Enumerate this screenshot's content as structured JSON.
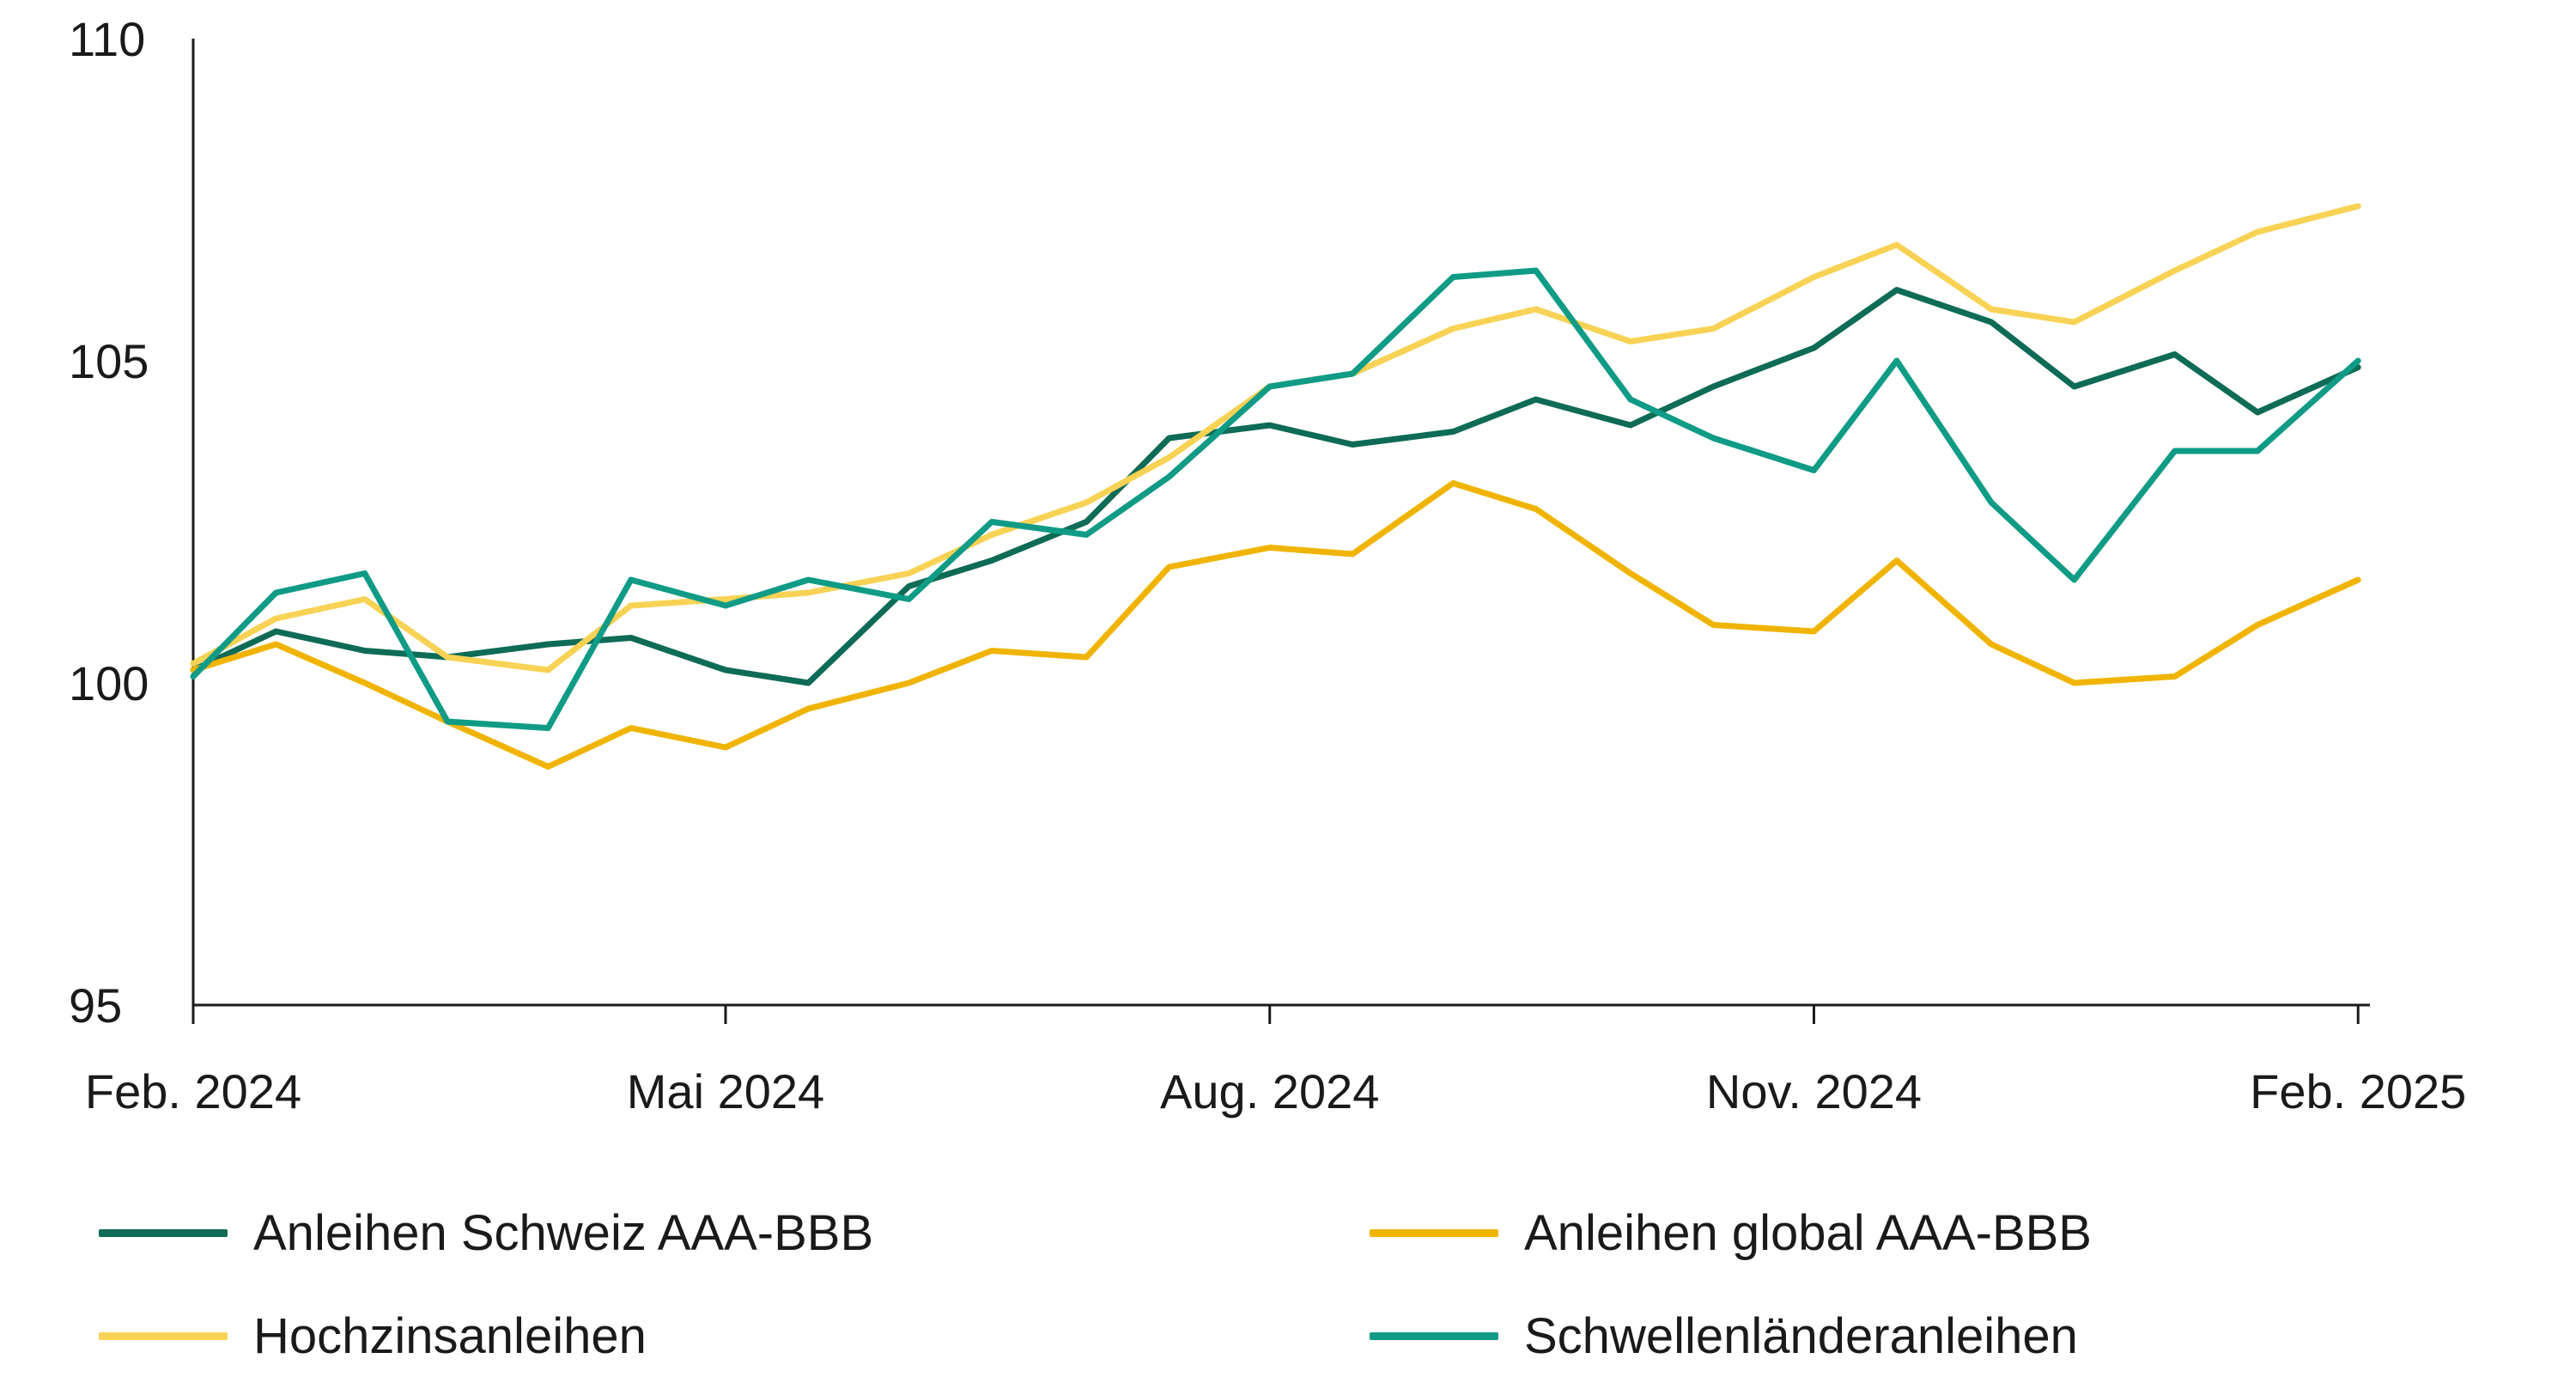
{
  "chart_data": {
    "type": "line",
    "title": "",
    "xlabel": "",
    "ylabel": "",
    "ylim": [
      95,
      110
    ],
    "yticks": [
      95,
      100,
      105,
      110
    ],
    "xlim": [
      "2024-02-01",
      "2025-02-03"
    ],
    "xticks": [
      {
        "date": "2024-02-01",
        "label": "Feb. 2024"
      },
      {
        "date": "2024-05-01",
        "label": "Mai 2024"
      },
      {
        "date": "2024-08-01",
        "label": "Aug. 2024"
      },
      {
        "date": "2024-11-01",
        "label": "Nov. 2024"
      },
      {
        "date": "2025-02-01",
        "label": "Feb. 2025"
      }
    ],
    "grid": false,
    "legend_position": "bottom",
    "series": [
      {
        "name": "Anleihen Schweiz AAA-BBB",
        "color": "#0e6b55",
        "x": [
          "2024-02-01",
          "2024-02-15",
          "2024-03-01",
          "2024-03-15",
          "2024-04-01",
          "2024-04-15",
          "2024-05-01",
          "2024-05-15",
          "2024-06-01",
          "2024-06-15",
          "2024-07-01",
          "2024-07-15",
          "2024-08-01",
          "2024-08-15",
          "2024-09-01",
          "2024-09-15",
          "2024-10-01",
          "2024-10-15",
          "2024-11-01",
          "2024-11-15",
          "2024-12-01",
          "2024-12-15",
          "2025-01-01",
          "2025-01-15",
          "2025-02-01"
        ],
        "values": [
          100.2,
          100.8,
          100.5,
          100.4,
          100.6,
          100.7,
          100.2,
          100.0,
          101.5,
          101.9,
          102.5,
          103.8,
          104.0,
          103.7,
          103.9,
          104.4,
          104.0,
          104.6,
          105.2,
          106.1,
          105.6,
          104.6,
          105.1,
          104.2,
          104.9
        ]
      },
      {
        "name": "Anleihen global AAA-BBB",
        "color": "#f0b400",
        "x": [
          "2024-02-01",
          "2024-02-15",
          "2024-03-01",
          "2024-03-15",
          "2024-04-01",
          "2024-04-15",
          "2024-05-01",
          "2024-05-15",
          "2024-06-01",
          "2024-06-15",
          "2024-07-01",
          "2024-07-15",
          "2024-08-01",
          "2024-08-15",
          "2024-09-01",
          "2024-09-15",
          "2024-10-01",
          "2024-10-15",
          "2024-11-01",
          "2024-11-15",
          "2024-12-01",
          "2024-12-15",
          "2025-01-01",
          "2025-01-15",
          "2025-02-01"
        ],
        "values": [
          100.2,
          100.6,
          100.0,
          99.4,
          98.7,
          99.3,
          99.0,
          99.6,
          100.0,
          100.5,
          100.4,
          101.8,
          102.1,
          102.0,
          103.1,
          102.7,
          101.7,
          100.9,
          100.8,
          101.9,
          100.6,
          100.0,
          100.1,
          100.9,
          101.6
        ]
      },
      {
        "name": "Hochzinsanleihen",
        "color": "#f7d254",
        "x": [
          "2024-02-01",
          "2024-02-15",
          "2024-03-01",
          "2024-03-15",
          "2024-04-01",
          "2024-04-15",
          "2024-05-01",
          "2024-05-15",
          "2024-06-01",
          "2024-06-15",
          "2024-07-01",
          "2024-07-15",
          "2024-08-01",
          "2024-08-15",
          "2024-09-01",
          "2024-09-15",
          "2024-10-01",
          "2024-10-15",
          "2024-11-01",
          "2024-11-15",
          "2024-12-01",
          "2024-12-15",
          "2025-01-01",
          "2025-01-15",
          "2025-02-01"
        ],
        "values": [
          100.3,
          101.0,
          101.3,
          100.4,
          100.2,
          101.2,
          101.3,
          101.4,
          101.7,
          102.3,
          102.8,
          103.5,
          104.6,
          104.8,
          105.5,
          105.8,
          105.3,
          105.5,
          106.3,
          106.8,
          105.8,
          105.6,
          106.4,
          107.0,
          107.4
        ]
      },
      {
        "name": "Schwellenländeranleihen",
        "color": "#0f9b85",
        "x": [
          "2024-02-01",
          "2024-02-15",
          "2024-03-01",
          "2024-03-15",
          "2024-04-01",
          "2024-04-15",
          "2024-05-01",
          "2024-05-15",
          "2024-06-01",
          "2024-06-15",
          "2024-07-01",
          "2024-07-15",
          "2024-08-01",
          "2024-08-15",
          "2024-09-01",
          "2024-09-15",
          "2024-10-01",
          "2024-10-15",
          "2024-11-01",
          "2024-11-15",
          "2024-12-01",
          "2024-12-15",
          "2025-01-01",
          "2025-01-15",
          "2025-02-01"
        ],
        "values": [
          100.1,
          101.4,
          101.7,
          99.4,
          99.3,
          101.6,
          101.2,
          101.6,
          101.3,
          102.5,
          102.3,
          103.2,
          104.6,
          104.8,
          106.3,
          106.4,
          104.4,
          103.8,
          103.3,
          105.0,
          102.8,
          101.6,
          103.6,
          103.6,
          105.0
        ]
      }
    ]
  }
}
